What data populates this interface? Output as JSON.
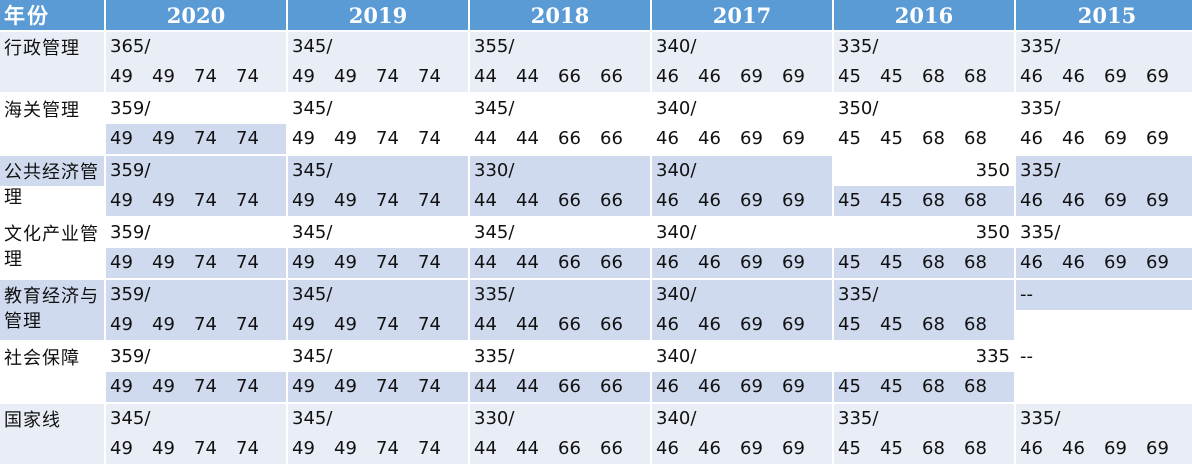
{
  "header": {
    "year_label": "年份",
    "years": [
      "2020",
      "2019",
      "2018",
      "2017",
      "2016",
      "2015"
    ]
  },
  "rows": [
    {
      "label": "行政管理",
      "cells": [
        {
          "total": "365/",
          "subs": [
            "49",
            "49",
            "74",
            "74"
          ]
        },
        {
          "total": "345/",
          "subs": [
            "49",
            "49",
            "74",
            "74"
          ]
        },
        {
          "total": "355/",
          "subs": [
            "44",
            "44",
            "66",
            "66"
          ]
        },
        {
          "total": "340/",
          "subs": [
            "46",
            "46",
            "69",
            "69"
          ]
        },
        {
          "total": "335/",
          "subs": [
            "45",
            "45",
            "68",
            "68"
          ]
        },
        {
          "total": "335/",
          "subs": [
            "46",
            "46",
            "69",
            "69"
          ]
        }
      ]
    },
    {
      "label": "海关管理",
      "cells": [
        {
          "total": "359/",
          "subs": [
            "49",
            "49",
            "74",
            "74"
          ]
        },
        {
          "total": "345/",
          "subs": [
            "49",
            "49",
            "74",
            "74"
          ]
        },
        {
          "total": "345/",
          "subs": [
            "44",
            "44",
            "66",
            "66"
          ]
        },
        {
          "total": "340/",
          "subs": [
            "46",
            "46",
            "69",
            "69"
          ]
        },
        {
          "total": "350/",
          "subs": [
            "45",
            "45",
            "68",
            "68"
          ]
        },
        {
          "total": "335/",
          "subs": [
            "46",
            "46",
            "69",
            "69"
          ]
        }
      ]
    },
    {
      "label": "公共经济管理",
      "cells": [
        {
          "total": "359/",
          "subs": [
            "49",
            "49",
            "74",
            "74"
          ]
        },
        {
          "total": "345/",
          "subs": [
            "49",
            "49",
            "74",
            "74"
          ]
        },
        {
          "total": "330/",
          "subs": [
            "44",
            "44",
            "66",
            "66"
          ]
        },
        {
          "total": "340/",
          "subs": [
            "46",
            "46",
            "69",
            "69"
          ]
        },
        {
          "total": "350",
          "subs": [
            "45",
            "45",
            "68",
            "68"
          ]
        },
        {
          "total": "335/",
          "subs": [
            "46",
            "46",
            "69",
            "69"
          ]
        }
      ]
    },
    {
      "label": "文化产业管理",
      "cells": [
        {
          "total": "359/",
          "subs": [
            "49",
            "49",
            "74",
            "74"
          ]
        },
        {
          "total": "345/",
          "subs": [
            "49",
            "49",
            "74",
            "74"
          ]
        },
        {
          "total": "345/",
          "subs": [
            "44",
            "44",
            "66",
            "66"
          ]
        },
        {
          "total": "340/",
          "subs": [
            "46",
            "46",
            "69",
            "69"
          ]
        },
        {
          "total": "350",
          "subs": [
            "45",
            "45",
            "68",
            "68"
          ]
        },
        {
          "total": "335/",
          "subs": [
            "46",
            "46",
            "69",
            "69"
          ]
        }
      ]
    },
    {
      "label": "教育经济与管理",
      "cells": [
        {
          "total": "359/",
          "subs": [
            "49",
            "49",
            "74",
            "74"
          ]
        },
        {
          "total": "345/",
          "subs": [
            "49",
            "49",
            "74",
            "74"
          ]
        },
        {
          "total": "335/",
          "subs": [
            "44",
            "44",
            "66",
            "66"
          ]
        },
        {
          "total": "340/",
          "subs": [
            "46",
            "46",
            "69",
            "69"
          ]
        },
        {
          "total": "335/",
          "subs": [
            "45",
            "45",
            "68",
            "68"
          ]
        },
        {
          "total": "--",
          "subs": []
        }
      ]
    },
    {
      "label": "社会保障",
      "cells": [
        {
          "total": "359/",
          "subs": [
            "49",
            "49",
            "74",
            "74"
          ]
        },
        {
          "total": "345/",
          "subs": [
            "49",
            "49",
            "74",
            "74"
          ]
        },
        {
          "total": "335/",
          "subs": [
            "44",
            "44",
            "66",
            "66"
          ]
        },
        {
          "total": "340/",
          "subs": [
            "46",
            "46",
            "69",
            "69"
          ]
        },
        {
          "total": "335",
          "subs": [
            "45",
            "45",
            "68",
            "68"
          ]
        },
        {
          "total": "--",
          "subs": []
        }
      ]
    },
    {
      "label": "国家线",
      "cells": [
        {
          "total": "345/",
          "subs": [
            "49",
            "49",
            "74",
            "74"
          ]
        },
        {
          "total": "345/",
          "subs": [
            "49",
            "49",
            "74",
            "74"
          ]
        },
        {
          "total": "330/",
          "subs": [
            "44",
            "44",
            "66",
            "66"
          ]
        },
        {
          "total": "340/",
          "subs": [
            "46",
            "46",
            "69",
            "69"
          ]
        },
        {
          "total": "335/",
          "subs": [
            "45",
            "45",
            "68",
            "68"
          ]
        },
        {
          "total": "335/",
          "subs": [
            "46",
            "46",
            "69",
            "69"
          ]
        }
      ]
    }
  ]
}
